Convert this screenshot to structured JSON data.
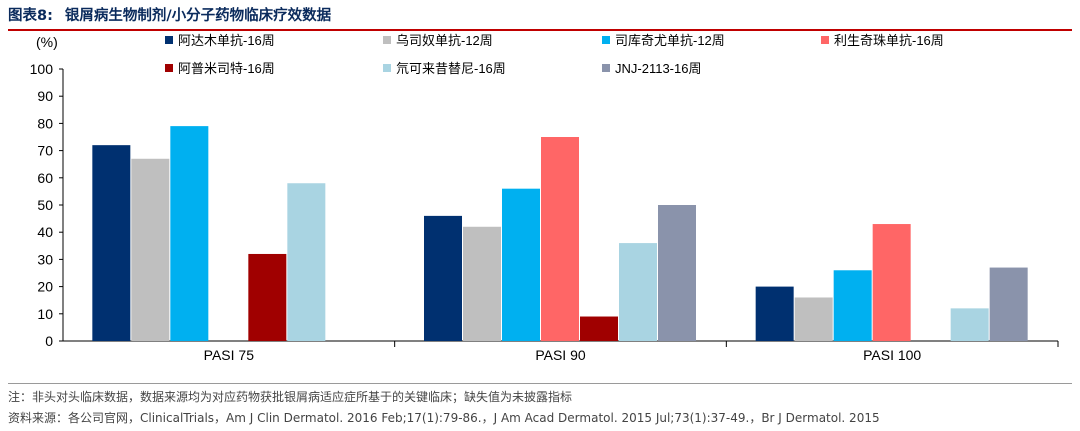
{
  "header": {
    "figure_label": "图表8:",
    "title": "银屑病生物制剂/小分子药物临床疗效数据"
  },
  "chart_data": {
    "type": "bar",
    "ylabel": "(%)",
    "ylim": [
      0,
      100
    ],
    "yticks": [
      0,
      10,
      20,
      30,
      40,
      50,
      60,
      70,
      80,
      90,
      100
    ],
    "grid": false,
    "legend_position": "top",
    "categories": [
      "PASI 75",
      "PASI 90",
      "PASI 100"
    ],
    "series": [
      {
        "name": "阿达木单抗-16周",
        "color": "#003070",
        "values": [
          72,
          46,
          20
        ]
      },
      {
        "name": "乌司奴单抗-12周",
        "color": "#bfbfbf",
        "values": [
          67,
          42,
          16
        ]
      },
      {
        "name": "司库奇尤单抗-12周",
        "color": "#00b0f0",
        "values": [
          79,
          56,
          26
        ]
      },
      {
        "name": "利生奇珠单抗-16周",
        "color": "#ff6666",
        "values": [
          null,
          75,
          43
        ]
      },
      {
        "name": "阿普米司特-16周",
        "color": "#a00000",
        "values": [
          32,
          9,
          null
        ]
      },
      {
        "name": "氘可来昔替尼-16周",
        "color": "#a9d4e2",
        "values": [
          58,
          36,
          12
        ]
      },
      {
        "name": "JNJ-2113-16周",
        "color": "#8a93ab",
        "values": [
          null,
          50,
          27
        ]
      }
    ]
  },
  "notes": {
    "note": "注：非头对头临床数据，数据来源均为对应药物获批银屑病适应症所基于的关键临床；缺失值为未披露指标",
    "source": "资料来源：各公司官网，ClinicalTrials，Am J Clin Dermatol. 2016 Feb;17(1):79-86.，J Am Acad Dermatol. 2015 Jul;73(1):37-49.，Br J Dermatol. 2015"
  }
}
